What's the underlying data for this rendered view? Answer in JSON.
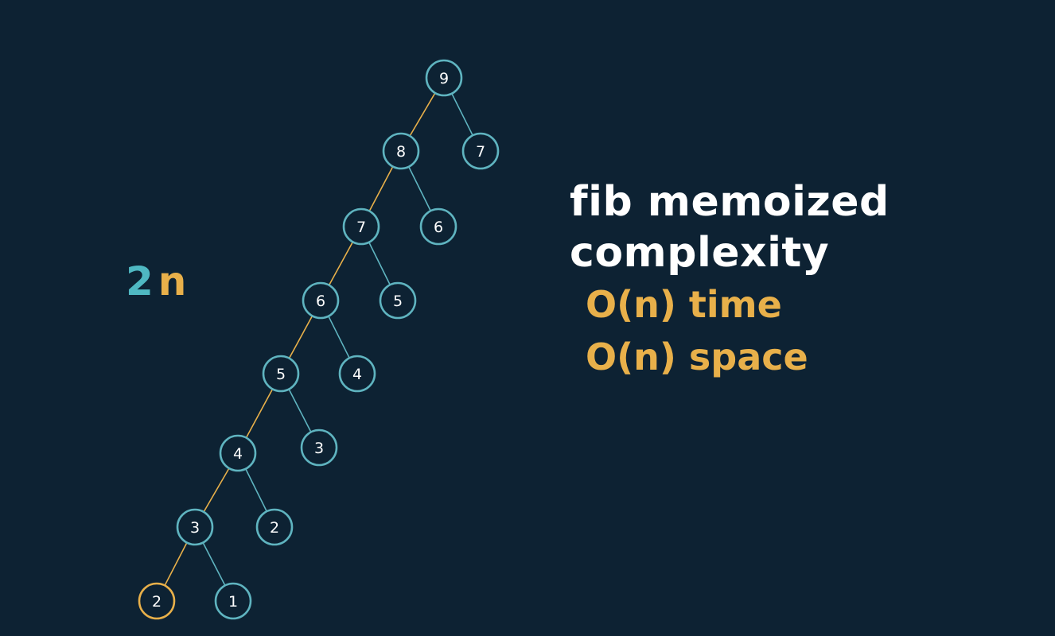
{
  "title_lines": [
    "fib memoized",
    "complexity"
  ],
  "complexity_lines": [
    "O(n) time",
    "O(n) space"
  ],
  "size_label": {
    "coefficient": "2",
    "variable": "n"
  },
  "colors": {
    "background": "#0d2233",
    "node_stroke": "#5fb4c0",
    "highlight": "#e8b04a",
    "node_text": "#ffffff",
    "edge": "#5fb4c0"
  },
  "tree": {
    "nodes": [
      {
        "id": "n9",
        "label": "9"
      },
      {
        "id": "n8",
        "label": "8"
      },
      {
        "id": "n7r",
        "label": "7"
      },
      {
        "id": "n7",
        "label": "7"
      },
      {
        "id": "n6r",
        "label": "6"
      },
      {
        "id": "n6",
        "label": "6"
      },
      {
        "id": "n5r",
        "label": "5"
      },
      {
        "id": "n5",
        "label": "5"
      },
      {
        "id": "n4r",
        "label": "4"
      },
      {
        "id": "n4",
        "label": "4"
      },
      {
        "id": "n3r",
        "label": "3"
      },
      {
        "id": "n3",
        "label": "3"
      },
      {
        "id": "n2r",
        "label": "2"
      },
      {
        "id": "n2",
        "label": "2",
        "highlight": true
      },
      {
        "id": "n1",
        "label": "1"
      }
    ],
    "edges": [
      {
        "from": "n9",
        "to": "n8",
        "highlight": true
      },
      {
        "from": "n9",
        "to": "n7r"
      },
      {
        "from": "n8",
        "to": "n7",
        "highlight": true
      },
      {
        "from": "n8",
        "to": "n6r"
      },
      {
        "from": "n7",
        "to": "n6",
        "highlight": true
      },
      {
        "from": "n7",
        "to": "n5r"
      },
      {
        "from": "n6",
        "to": "n5",
        "highlight": true
      },
      {
        "from": "n6",
        "to": "n4r"
      },
      {
        "from": "n5",
        "to": "n4",
        "highlight": true
      },
      {
        "from": "n5",
        "to": "n3r"
      },
      {
        "from": "n4",
        "to": "n3",
        "highlight": true
      },
      {
        "from": "n4",
        "to": "n2r"
      },
      {
        "from": "n3",
        "to": "n2",
        "highlight": true
      },
      {
        "from": "n3",
        "to": "n1"
      }
    ]
  }
}
